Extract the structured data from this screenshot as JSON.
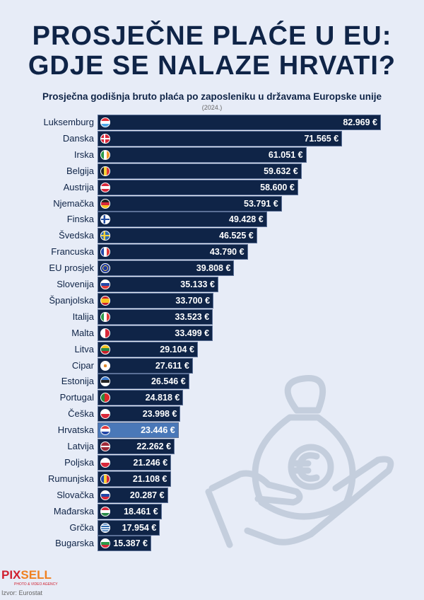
{
  "title_lines": [
    "PROSJEČNE PLAĆE U EU:",
    "GDJE SE NALAZE HRVATI?"
  ],
  "colors": {
    "bar": "#0f2447",
    "highlight": "#4a78b8",
    "background": "#e7ecf7"
  },
  "chart_data": {
    "type": "bar",
    "orientation": "horizontal",
    "title": "Prosječna godišnja bruto plaća po zaposleniku u državama Europske unije",
    "subtitle": "(2024.)",
    "highlight": "Hrvatska",
    "categories": [
      "Luksemburg",
      "Danska",
      "Irska",
      "Belgija",
      "Austrija",
      "Njemačka",
      "Finska",
      "Švedska",
      "Francuska",
      "EU prosjek",
      "Slovenija",
      "Španjolska",
      "Italija",
      "Malta",
      "Litva",
      "Cipar",
      "Estonija",
      "Portugal",
      "Češka",
      "Hrvatska",
      "Latvija",
      "Poljska",
      "Rumunjska",
      "Slovačka",
      "Mađarska",
      "Grčka",
      "Bugarska"
    ],
    "values": [
      82969,
      71565,
      61051,
      59632,
      58600,
      53791,
      49428,
      46525,
      43790,
      39808,
      35133,
      33700,
      33523,
      33499,
      29104,
      27611,
      26546,
      24818,
      23998,
      23446,
      22262,
      21246,
      21108,
      20287,
      18461,
      17954,
      15387
    ],
    "value_labels": [
      "82.969 €",
      "71.565 €",
      "61.051 €",
      "59.632 €",
      "58.600 €",
      "53.791 €",
      "49.428 €",
      "46.525 €",
      "43.790 €",
      "39.808 €",
      "35.133 €",
      "33.700 €",
      "33.523 €",
      "33.499 €",
      "29.104 €",
      "27.611 €",
      "26.546 €",
      "24.818 €",
      "23.998 €",
      "23.446 €",
      "22.262 €",
      "21.246 €",
      "21.108 €",
      "20.287 €",
      "18.461 €",
      "17.954 €",
      "15.387 €"
    ],
    "flags": [
      "luxembourg-flag",
      "denmark-flag",
      "ireland-flag",
      "belgium-flag",
      "austria-flag",
      "germany-flag",
      "finland-flag",
      "sweden-flag",
      "france-flag",
      "eu-flag",
      "slovenia-flag",
      "spain-flag",
      "italy-flag",
      "malta-flag",
      "lithuania-flag",
      "cyprus-flag",
      "estonia-flag",
      "portugal-flag",
      "czechia-flag",
      "croatia-flag",
      "latvia-flag",
      "poland-flag",
      "romania-flag",
      "slovakia-flag",
      "hungary-flag",
      "greece-flag",
      "bulgaria-flag"
    ]
  },
  "logo": "PIXSELL",
  "logo_tagline": "PHOTO & VIDEO AGENCY",
  "source": "Izvor: Eurostat"
}
